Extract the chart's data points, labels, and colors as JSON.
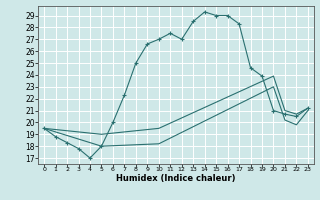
{
  "xlabel": "Humidex (Indice chaleur)",
  "xlim": [
    -0.5,
    23.5
  ],
  "ylim": [
    16.5,
    29.8
  ],
  "yticks": [
    17,
    18,
    19,
    20,
    21,
    22,
    23,
    24,
    25,
    26,
    27,
    28,
    29
  ],
  "xticks": [
    0,
    1,
    2,
    3,
    4,
    5,
    6,
    7,
    8,
    9,
    10,
    11,
    12,
    13,
    14,
    15,
    16,
    17,
    18,
    19,
    20,
    21,
    22,
    23
  ],
  "bg_color": "#cfe8e8",
  "line_color": "#2a7070",
  "grid_color": "#ffffff",
  "line1_x": [
    0,
    1,
    2,
    3,
    4,
    5,
    6,
    7,
    8,
    9,
    10,
    11,
    12,
    13,
    14,
    15,
    16,
    17,
    18,
    19,
    20,
    21,
    22,
    23
  ],
  "line1_y": [
    19.5,
    18.8,
    18.3,
    17.8,
    17.0,
    18.0,
    20.0,
    22.3,
    25.0,
    26.6,
    27.0,
    27.5,
    27.0,
    28.5,
    29.3,
    29.0,
    29.0,
    28.3,
    24.6,
    23.9,
    21.0,
    20.7,
    20.5,
    21.2
  ],
  "line2_x": [
    0,
    5,
    10,
    20,
    21,
    22,
    23
  ],
  "line2_y": [
    19.5,
    19.0,
    19.5,
    23.9,
    21.0,
    20.7,
    21.2
  ],
  "line3_x": [
    0,
    5,
    10,
    20,
    21,
    22,
    23
  ],
  "line3_y": [
    19.5,
    18.0,
    18.2,
    23.0,
    20.2,
    19.8,
    21.0
  ]
}
